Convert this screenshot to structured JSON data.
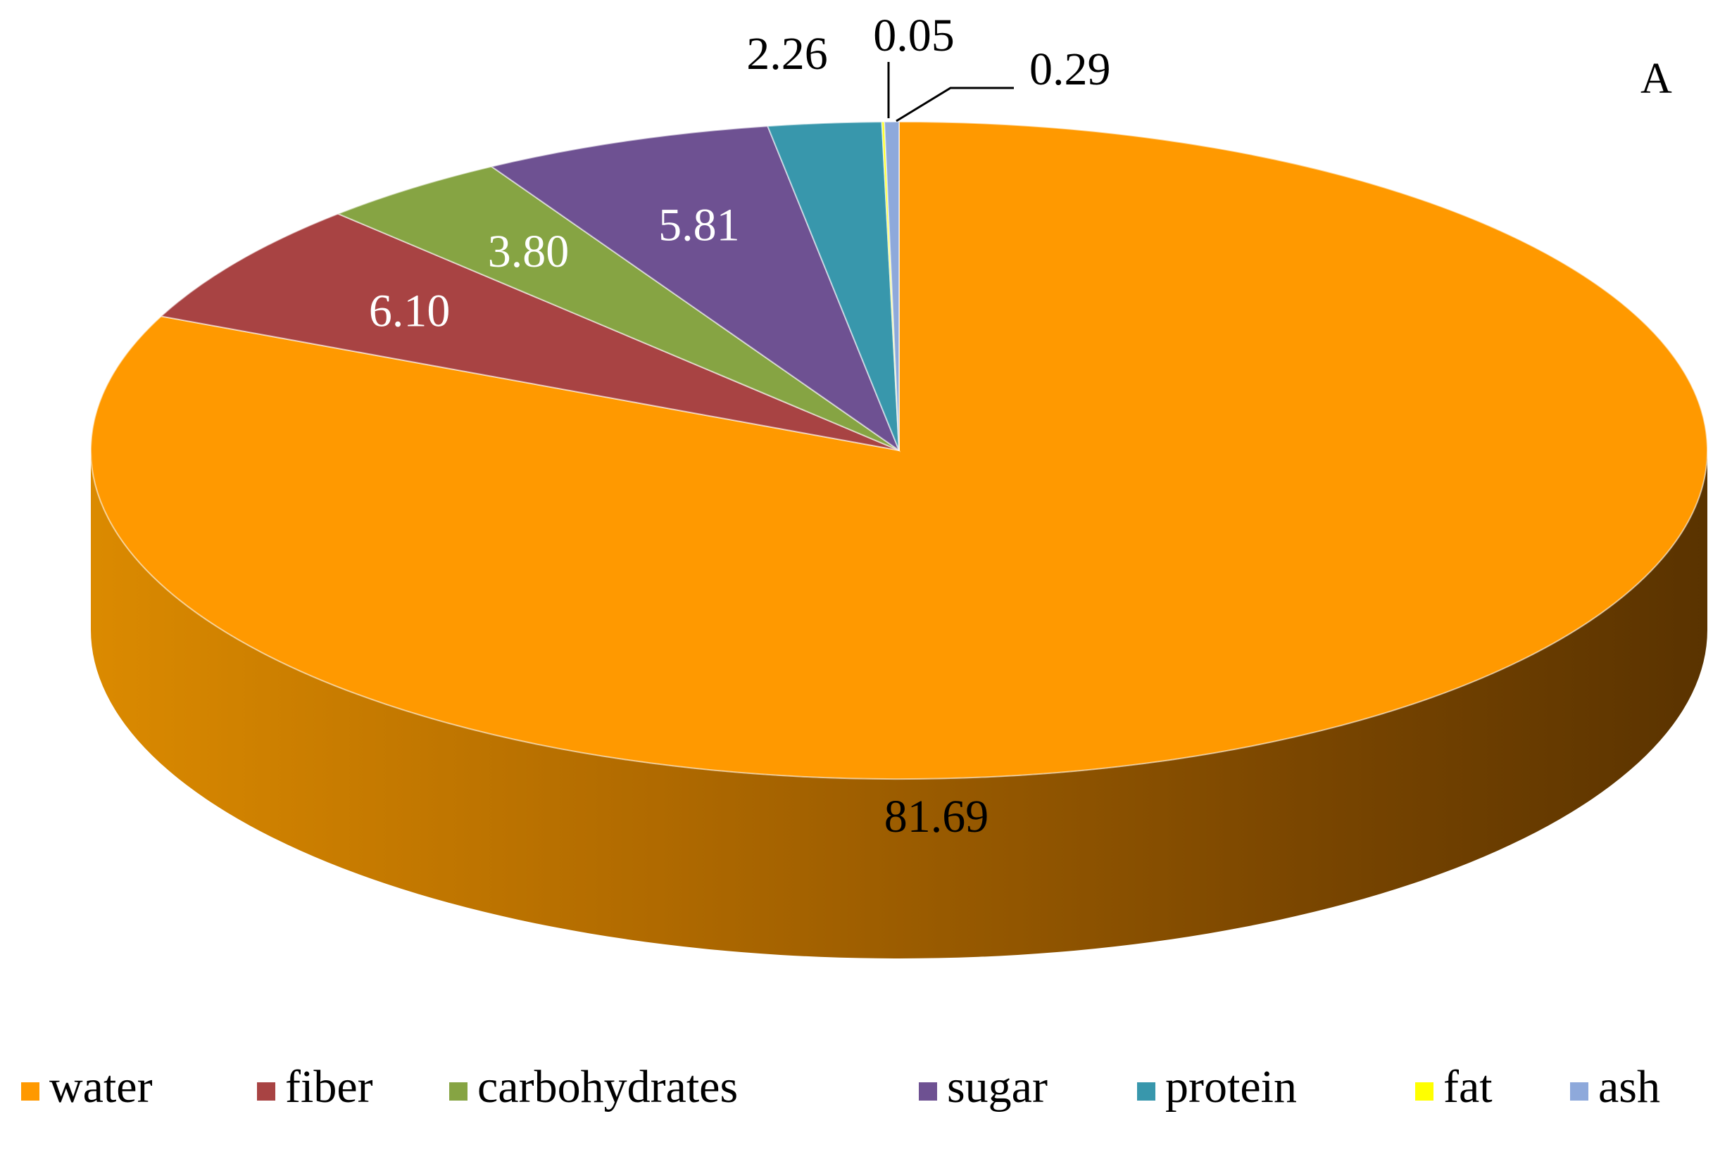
{
  "panel_label": "A",
  "chart_data": {
    "type": "pie",
    "style": "3d",
    "title": "",
    "legend_position": "bottom",
    "slices": [
      {
        "name": "water",
        "value": 81.69,
        "label": "81.69",
        "color": "#FF9900"
      },
      {
        "name": "fiber",
        "value": 6.1,
        "label": "6.10",
        "color": "#A84343"
      },
      {
        "name": "carbohydrates",
        "value": 3.8,
        "label": "3.80",
        "color": "#86A443"
      },
      {
        "name": "sugar",
        "value": 5.81,
        "label": "5.81",
        "color": "#6E5192"
      },
      {
        "name": "protein",
        "value": 2.26,
        "label": "2.26",
        "color": "#3897AC"
      },
      {
        "name": "fat",
        "value": 0.05,
        "label": "0.05",
        "color": "#FFFF00"
      },
      {
        "name": "ash",
        "value": 0.29,
        "label": "0.29",
        "color": "#8EA9DB"
      }
    ]
  }
}
